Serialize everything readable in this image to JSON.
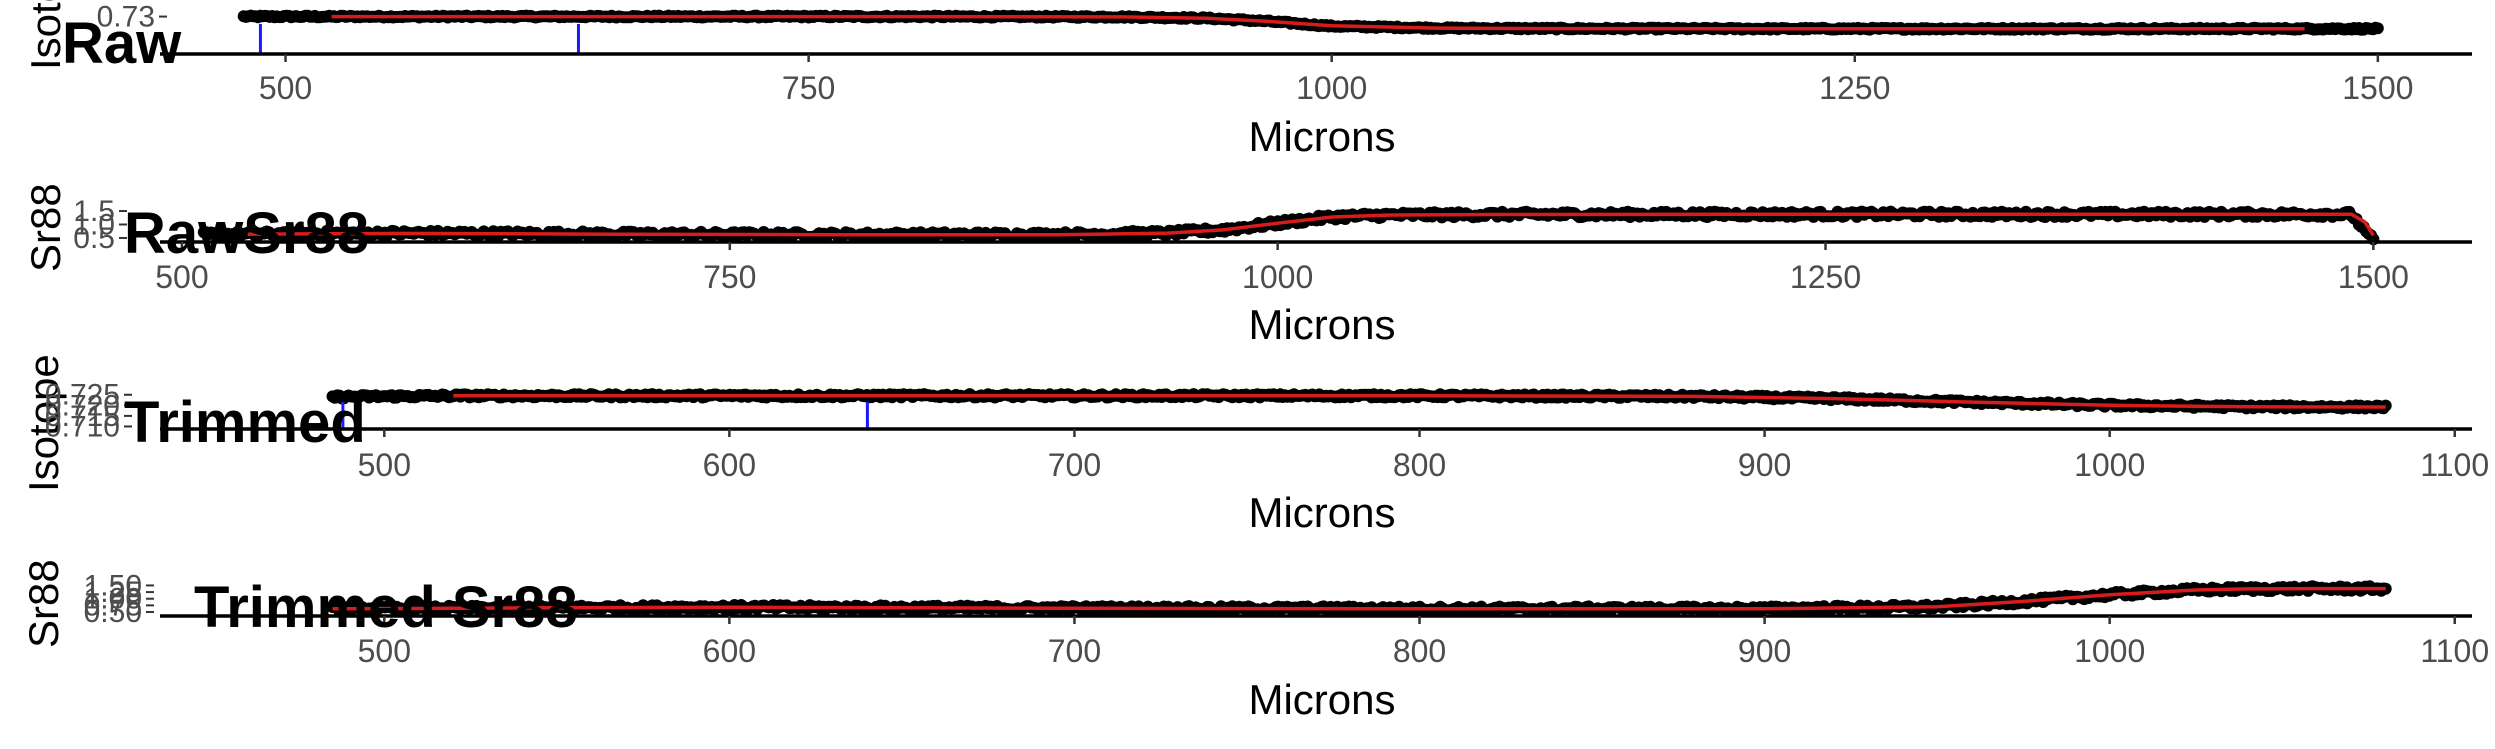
{
  "chart_data": [
    {
      "type": "scatter",
      "title": "Raw",
      "xlabel": "Microns",
      "ylabel": "Isotope",
      "xlim": [
        440,
        1545
      ],
      "ylim": [
        0.7066,
        0.7316
      ],
      "xticks": [
        500,
        750,
        1000,
        1250,
        1500
      ],
      "yticks": [
        0.73
      ],
      "yticks_text": [
        "0.73"
      ],
      "grid": false,
      "colors": {
        "points": "#000000",
        "fit": "#d81b1b",
        "marker": "#1a1aff"
      },
      "vlines": [
        488,
        640
      ],
      "points": {
        "x_range": [
          480,
          1500
        ],
        "smooth": {
          "x": [
            480,
            520,
            600,
            700,
            800,
            900,
            940,
            970,
            1000,
            1050,
            1100,
            1200,
            1300,
            1400,
            1500
          ],
          "y": [
            0.73,
            0.73,
            0.73,
            0.73,
            0.73,
            0.7298,
            0.729,
            0.727,
            0.724,
            0.7228,
            0.7225,
            0.7224,
            0.7224,
            0.7224,
            0.7224
          ]
        },
        "spread": 0.0006
      },
      "series": [
        {
          "x": [
            522,
            600,
            700,
            800,
            900,
            940,
            970,
            1000,
            1050,
            1100,
            1200,
            1300,
            1400,
            1465
          ],
          "y": [
            0.73,
            0.73,
            0.73,
            0.73,
            0.7298,
            0.729,
            0.727,
            0.7242,
            0.7228,
            0.7225,
            0.7224,
            0.7224,
            0.7224,
            0.7224
          ]
        }
      ]
    },
    {
      "type": "scatter",
      "title": "RawSr88",
      "xlabel": "Microns",
      "ylabel": "Sr88",
      "xlim": [
        490,
        1545
      ],
      "ylim": [
        0.35,
        1.65
      ],
      "xticks": [
        500,
        750,
        1000,
        1250,
        1500
      ],
      "yticks": [
        1.5,
        1.0,
        0.5
      ],
      "yticks_text": [
        "1.5",
        "1.0",
        "0.5"
      ],
      "grid": false,
      "colors": {
        "points": "#000000",
        "fit": "#d81b1b"
      },
      "vlines": [],
      "points": {
        "x_range": [
          510,
          1500
        ],
        "smooth": {
          "x": [
            510,
            550,
            600,
            650,
            700,
            800,
            900,
            950,
            975,
            1000,
            1025,
            1050,
            1100,
            1200,
            1300,
            1400,
            1490,
            1500
          ],
          "y": [
            0.62,
            0.66,
            0.68,
            0.66,
            0.64,
            0.62,
            0.62,
            0.68,
            0.8,
            1.05,
            1.28,
            1.35,
            1.37,
            1.38,
            1.38,
            1.38,
            1.38,
            0.4
          ]
        },
        "spread": 0.1
      },
      "series": [
        {
          "x": [
            530,
            600,
            650,
            700,
            800,
            900,
            950,
            975,
            1000,
            1025,
            1050,
            1100,
            1200,
            1300,
            1400,
            1490,
            1496,
            1500
          ],
          "y": [
            0.64,
            0.67,
            0.66,
            0.64,
            0.62,
            0.62,
            0.68,
            0.8,
            1.05,
            1.28,
            1.35,
            1.37,
            1.38,
            1.38,
            1.38,
            1.38,
            1.1,
            0.6
          ]
        }
      ]
    },
    {
      "type": "scatter",
      "title": "Trimmed",
      "xlabel": "Microns",
      "ylabel": "Isotope",
      "xlim": [
        435,
        1105
      ],
      "ylim": [
        0.7088,
        0.7263
      ],
      "xticks": [
        500,
        600,
        700,
        800,
        900,
        1000,
        1100
      ],
      "yticks": [
        0.725,
        0.72,
        0.715,
        0.71
      ],
      "yticks_text": [
        "0.725",
        "0.720",
        "0.715",
        "0.710"
      ],
      "grid": false,
      "colors": {
        "points": "#000000",
        "fit": "#d81b1b",
        "marker": "#1a1aff"
      },
      "vlines": [
        488,
        640
      ],
      "points": {
        "x_range": [
          485,
          1080
        ],
        "smooth": {
          "x": [
            485,
            520,
            600,
            700,
            800,
            880,
            920,
            960,
            1000,
            1040,
            1080
          ],
          "y": [
            0.724,
            0.7245,
            0.7245,
            0.7245,
            0.7245,
            0.7242,
            0.7232,
            0.7215,
            0.72,
            0.7193,
            0.7192
          ]
        },
        "spread": 0.0008
      },
      "series": [
        {
          "x": [
            520,
            600,
            700,
            800,
            880,
            920,
            960,
            1000,
            1040,
            1080
          ],
          "y": [
            0.7245,
            0.7245,
            0.7245,
            0.7245,
            0.7242,
            0.7232,
            0.7215,
            0.72,
            0.7193,
            0.7192
          ]
        }
      ]
    },
    {
      "type": "scatter",
      "title": "Trimmed Sr88",
      "xlabel": "Microns",
      "ylabel": "Sr88",
      "xlim": [
        435,
        1105
      ],
      "ylim": [
        0.35,
        1.78
      ],
      "xticks": [
        500,
        600,
        700,
        800,
        900,
        1000,
        1100
      ],
      "yticks": [
        1.5,
        1.25,
        1.0,
        0.75,
        0.5
      ],
      "yticks_text": [
        "1.50",
        "1.25",
        "1.00",
        "0.75",
        "0.50"
      ],
      "grid": false,
      "colors": {
        "points": "#000000",
        "fit": "#d81b1b"
      },
      "vlines": [],
      "points": {
        "x_range": [
          485,
          1080
        ],
        "smooth": {
          "x": [
            485,
            550,
            600,
            650,
            700,
            800,
            900,
            950,
            975,
            1000,
            1025,
            1040,
            1060,
            1080
          ],
          "y": [
            0.62,
            0.66,
            0.68,
            0.66,
            0.64,
            0.62,
            0.62,
            0.7,
            0.9,
            1.15,
            1.33,
            1.37,
            1.38,
            1.38
          ]
        },
        "spread": 0.09
      },
      "series": [
        {
          "x": [
            485,
            550,
            600,
            650,
            700,
            800,
            900,
            950,
            975,
            1000,
            1025,
            1040,
            1060,
            1080
          ],
          "y": [
            0.62,
            0.66,
            0.68,
            0.66,
            0.64,
            0.62,
            0.62,
            0.7,
            0.9,
            1.15,
            1.33,
            1.37,
            1.38,
            1.38
          ]
        }
      ]
    }
  ]
}
